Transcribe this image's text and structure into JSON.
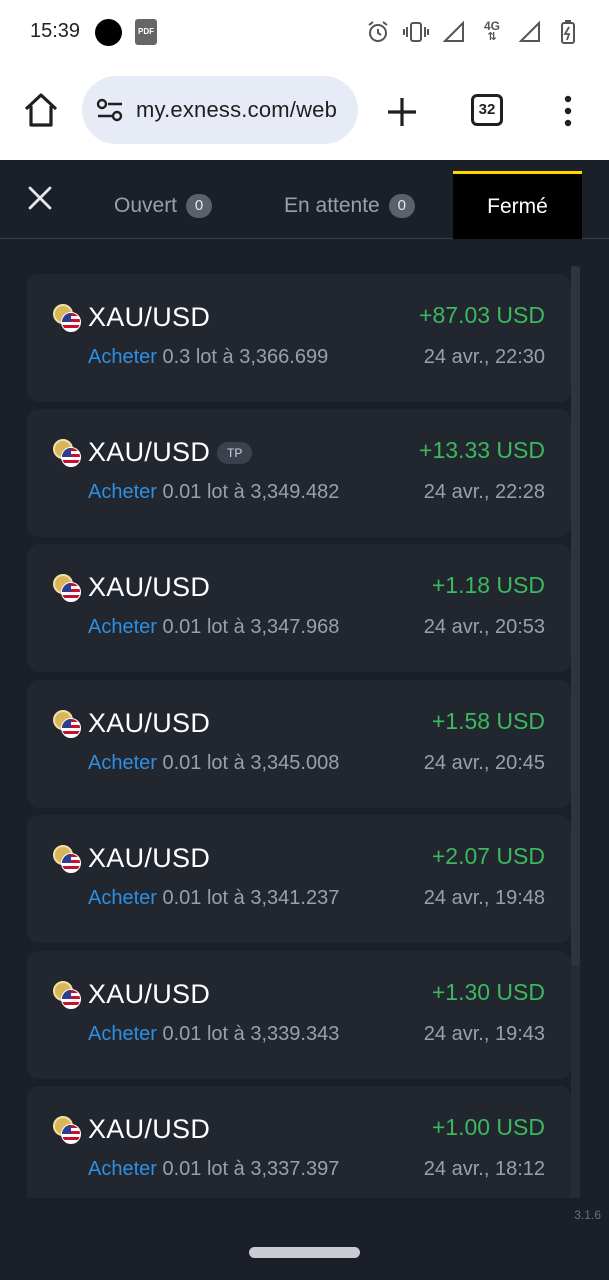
{
  "status_bar": {
    "time": "15:39",
    "pdf_label": "PDF",
    "network": "4G"
  },
  "browser": {
    "url": "my.exness.com/web",
    "tab_count": "32"
  },
  "tabs": [
    {
      "label": "Ouvert",
      "count": "0"
    },
    {
      "label": "En attente",
      "count": "0"
    },
    {
      "label": "Fermé"
    }
  ],
  "active_tab": "Fermé",
  "colors": {
    "profit": "#3cb85f",
    "side_buy": "#2f8fe0",
    "active_tab_accent": "#ffd600",
    "background": "#1b1f27",
    "card": "#22262f"
  },
  "positions": [
    {
      "symbol": "XAU/USD",
      "tag": "",
      "profit": "+87.03 USD",
      "side": "Acheter",
      "detail": "0.3 lot à 3,366.699",
      "time": "24 avr., 22:30"
    },
    {
      "symbol": "XAU/USD",
      "tag": "TP",
      "profit": "+13.33 USD",
      "side": "Acheter",
      "detail": "0.01 lot à 3,349.482",
      "time": "24 avr., 22:28"
    },
    {
      "symbol": "XAU/USD",
      "tag": "",
      "profit": "+1.18 USD",
      "side": "Acheter",
      "detail": "0.01 lot à 3,347.968",
      "time": "24 avr., 20:53"
    },
    {
      "symbol": "XAU/USD",
      "tag": "",
      "profit": "+1.58 USD",
      "side": "Acheter",
      "detail": "0.01 lot à 3,345.008",
      "time": "24 avr., 20:45"
    },
    {
      "symbol": "XAU/USD",
      "tag": "",
      "profit": "+2.07 USD",
      "side": "Acheter",
      "detail": "0.01 lot à 3,341.237",
      "time": "24 avr., 19:48"
    },
    {
      "symbol": "XAU/USD",
      "tag": "",
      "profit": "+1.30 USD",
      "side": "Acheter",
      "detail": "0.01 lot à 3,339.343",
      "time": "24 avr., 19:43"
    },
    {
      "symbol": "XAU/USD",
      "tag": "",
      "profit": "+1.00 USD",
      "side": "Acheter",
      "detail": "0.01 lot à 3,337.397",
      "time": "24 avr., 18:12"
    }
  ],
  "version": "3.1.6"
}
